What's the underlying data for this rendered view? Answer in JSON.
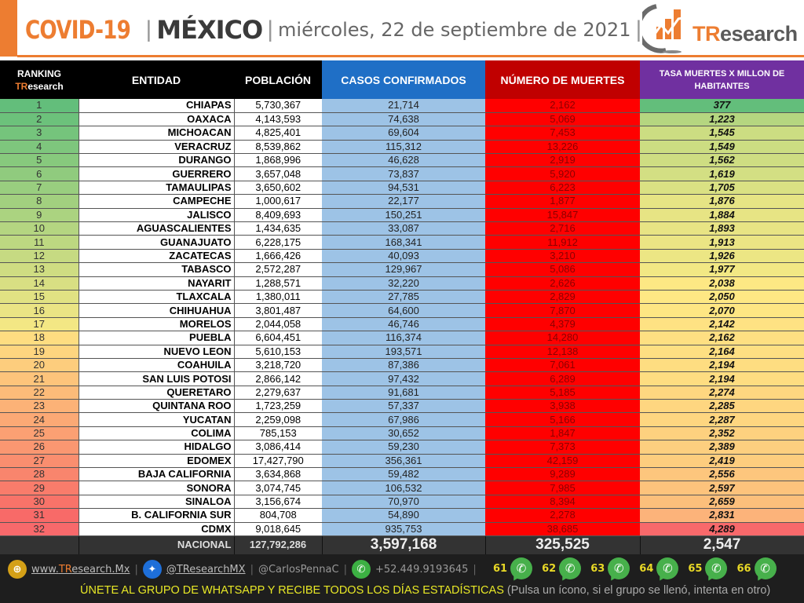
{
  "header": {
    "title_covid": "COVID-19",
    "separator": "|",
    "title_country": "MÉXICO",
    "date": "miércoles, 22 de septiembre de 2021",
    "trailing_separator": "|",
    "logo": {
      "tr": "TR",
      "rest": "esearch"
    }
  },
  "table": {
    "headers": {
      "rank_line1": "RANKING",
      "rank_tr": "TR",
      "rank_rest": "esearch",
      "entidad": "ENTIDAD",
      "poblacion": "POBLACIÓN",
      "casos": "CASOS CONFIRMADOS",
      "muertes": "NÚMERO DE MUERTES",
      "tasa": "TASA MUERTES X MILLON DE HABITANTES"
    },
    "rows": [
      {
        "rank": "1",
        "entidad": "CHIAPAS",
        "poblacion": "5,730,367",
        "casos": "21,714",
        "muertes": "2,162",
        "tasa": "377"
      },
      {
        "rank": "2",
        "entidad": "OAXACA",
        "poblacion": "4,143,593",
        "casos": "74,638",
        "muertes": "5,069",
        "tasa": "1,223"
      },
      {
        "rank": "3",
        "entidad": "MICHOACAN",
        "poblacion": "4,825,401",
        "casos": "69,604",
        "muertes": "7,453",
        "tasa": "1,545"
      },
      {
        "rank": "4",
        "entidad": "VERACRUZ",
        "poblacion": "8,539,862",
        "casos": "115,312",
        "muertes": "13,226",
        "tasa": "1,549"
      },
      {
        "rank": "5",
        "entidad": "DURANGO",
        "poblacion": "1,868,996",
        "casos": "46,628",
        "muertes": "2,919",
        "tasa": "1,562"
      },
      {
        "rank": "6",
        "entidad": "GUERRERO",
        "poblacion": "3,657,048",
        "casos": "73,837",
        "muertes": "5,920",
        "tasa": "1,619"
      },
      {
        "rank": "7",
        "entidad": "TAMAULIPAS",
        "poblacion": "3,650,602",
        "casos": "94,531",
        "muertes": "6,223",
        "tasa": "1,705"
      },
      {
        "rank": "8",
        "entidad": "CAMPECHE",
        "poblacion": "1,000,617",
        "casos": "22,177",
        "muertes": "1,877",
        "tasa": "1,876"
      },
      {
        "rank": "9",
        "entidad": "JALISCO",
        "poblacion": "8,409,693",
        "casos": "150,251",
        "muertes": "15,847",
        "tasa": "1,884"
      },
      {
        "rank": "10",
        "entidad": "AGUASCALIENTES",
        "poblacion": "1,434,635",
        "casos": "33,087",
        "muertes": "2,716",
        "tasa": "1,893"
      },
      {
        "rank": "11",
        "entidad": "GUANAJUATO",
        "poblacion": "6,228,175",
        "casos": "168,341",
        "muertes": "11,912",
        "tasa": "1,913"
      },
      {
        "rank": "12",
        "entidad": "ZACATECAS",
        "poblacion": "1,666,426",
        "casos": "40,093",
        "muertes": "3,210",
        "tasa": "1,926"
      },
      {
        "rank": "13",
        "entidad": "TABASCO",
        "poblacion": "2,572,287",
        "casos": "129,967",
        "muertes": "5,086",
        "tasa": "1,977"
      },
      {
        "rank": "14",
        "entidad": "NAYARIT",
        "poblacion": "1,288,571",
        "casos": "32,220",
        "muertes": "2,626",
        "tasa": "2,038"
      },
      {
        "rank": "15",
        "entidad": "TLAXCALA",
        "poblacion": "1,380,011",
        "casos": "27,785",
        "muertes": "2,829",
        "tasa": "2,050"
      },
      {
        "rank": "16",
        "entidad": "CHIHUAHUA",
        "poblacion": "3,801,487",
        "casos": "64,600",
        "muertes": "7,870",
        "tasa": "2,070"
      },
      {
        "rank": "17",
        "entidad": "MORELOS",
        "poblacion": "2,044,058",
        "casos": "46,746",
        "muertes": "4,379",
        "tasa": "2,142"
      },
      {
        "rank": "18",
        "entidad": "PUEBLA",
        "poblacion": "6,604,451",
        "casos": "116,374",
        "muertes": "14,280",
        "tasa": "2,162"
      },
      {
        "rank": "19",
        "entidad": "NUEVO LEON",
        "poblacion": "5,610,153",
        "casos": "193,571",
        "muertes": "12,138",
        "tasa": "2,164"
      },
      {
        "rank": "20",
        "entidad": "COAHUILA",
        "poblacion": "3,218,720",
        "casos": "87,386",
        "muertes": "7,061",
        "tasa": "2,194"
      },
      {
        "rank": "21",
        "entidad": "SAN LUIS POTOSI",
        "poblacion": "2,866,142",
        "casos": "97,432",
        "muertes": "6,289",
        "tasa": "2,194"
      },
      {
        "rank": "22",
        "entidad": "QUERETARO",
        "poblacion": "2,279,637",
        "casos": "91,681",
        "muertes": "5,185",
        "tasa": "2,274"
      },
      {
        "rank": "23",
        "entidad": "QUINTANA ROO",
        "poblacion": "1,723,259",
        "casos": "57,337",
        "muertes": "3,938",
        "tasa": "2,285"
      },
      {
        "rank": "24",
        "entidad": "YUCATAN",
        "poblacion": "2,259,098",
        "casos": "67,986",
        "muertes": "5,166",
        "tasa": "2,287"
      },
      {
        "rank": "25",
        "entidad": "COLIMA",
        "poblacion": "785,153",
        "casos": "30,652",
        "muertes": "1,847",
        "tasa": "2,352"
      },
      {
        "rank": "26",
        "entidad": "HIDALGO",
        "poblacion": "3,086,414",
        "casos": "59,230",
        "muertes": "7,373",
        "tasa": "2,389"
      },
      {
        "rank": "27",
        "entidad": "EDOMEX",
        "poblacion": "17,427,790",
        "casos": "356,361",
        "muertes": "42,159",
        "tasa": "2,419"
      },
      {
        "rank": "28",
        "entidad": "BAJA CALIFORNIA",
        "poblacion": "3,634,868",
        "casos": "59,482",
        "muertes": "9,289",
        "tasa": "2,556"
      },
      {
        "rank": "29",
        "entidad": "SONORA",
        "poblacion": "3,074,745",
        "casos": "106,532",
        "muertes": "7,985",
        "tasa": "2,597"
      },
      {
        "rank": "30",
        "entidad": "SINALOA",
        "poblacion": "3,156,674",
        "casos": "70,970",
        "muertes": "8,394",
        "tasa": "2,659"
      },
      {
        "rank": "31",
        "entidad": "B. CALIFORNIA SUR",
        "poblacion": "804,708",
        "casos": "54,890",
        "muertes": "2,278",
        "tasa": "2,831"
      },
      {
        "rank": "32",
        "entidad": "CDMX",
        "poblacion": "9,018,645",
        "casos": "935,753",
        "muertes": "38,685",
        "tasa": "4,289"
      }
    ],
    "rank_colors": [
      "#63be7b",
      "#6cc17b",
      "#75c47c",
      "#7ec67d",
      "#87c97d",
      "#90cb7e",
      "#99ce7f",
      "#a2d07f",
      "#abd380",
      "#b4d581",
      "#bdd881",
      "#c6da82",
      "#cfdd82",
      "#d8df83",
      "#e1e283",
      "#eae484",
      "#f3e784",
      "#fedd81",
      "#fed57f",
      "#fdcd7d",
      "#fdc47b",
      "#fcbb79",
      "#fcb277",
      "#fba975",
      "#fba073",
      "#fa9771",
      "#fa8e6f",
      "#f9856d",
      "#f97c6b",
      "#f87369",
      "#f86a68",
      "#f8696b"
    ],
    "tasa_colors": [
      "#63be7b",
      "#b5d680",
      "#ccdd82",
      "#ccdd82",
      "#cedd82",
      "#d3df83",
      "#dae183",
      "#e6e484",
      "#e7e484",
      "#e8e484",
      "#ebe584",
      "#ece684",
      "#f2e884",
      "#fde884",
      "#fee884",
      "#fee683",
      "#fee283",
      "#fedf82",
      "#fedf82",
      "#fedd81",
      "#fedd81",
      "#fed780",
      "#fed680",
      "#fed680",
      "#fdd17f",
      "#fdcf7f",
      "#fdcd7e",
      "#fdc67d",
      "#fdc37c",
      "#fcbf7b",
      "#fcb37a",
      "#f8696b"
    ],
    "nacional": {
      "label": "NACIONAL",
      "poblacion": "127,792,286",
      "casos": "3,597,168",
      "muertes": "325,525",
      "tasa": "2,547"
    }
  },
  "footer": {
    "website_prefix": "www.",
    "website_tr": "TR",
    "website_rest": "esearch.Mx",
    "twitter": "@TResearchMX",
    "twitter2": "@CarlosPennaC",
    "phone": "+52.449.9193645",
    "separator": "|",
    "whatsapp_groups": [
      "61",
      "62",
      "63",
      "64",
      "65",
      "66"
    ],
    "cta": "ÚNETE AL GRUPO DE WHATSAPP Y RECIBE TODOS LOS DÍAS ESTADÍSTICAS",
    "cta_note": "(Pulsa un ícono, si el grupo se llenó, intenta en otro)"
  }
}
